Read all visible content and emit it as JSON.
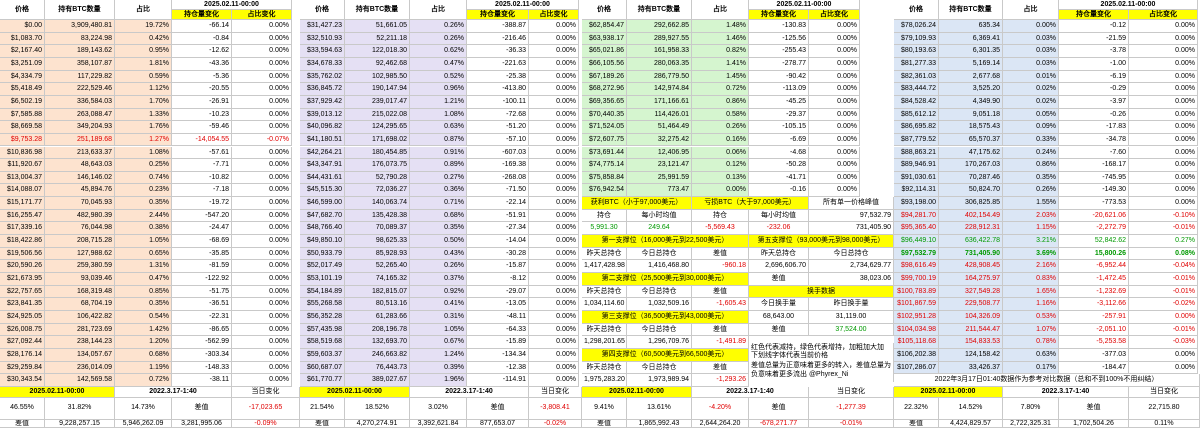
{
  "headers": {
    "price": "价格",
    "btc": "持有BTC数量",
    "pct": "占比",
    "date": "2025.02.11-00:00",
    "hold_change": "持仓量变化",
    "pct_change": "占比变化"
  },
  "blocks": [
    {
      "tone": "peach",
      "rows": [
        [
          "$0.00",
          "3,909,480.81",
          "19.72%",
          "-66.14",
          "0.00%"
        ],
        [
          "$1,083.70",
          "83,224.98",
          "0.42%",
          "-0.84",
          "0.00%"
        ],
        [
          "$2,167.40",
          "189,143.62",
          "0.95%",
          "-12.62",
          "0.00%"
        ],
        [
          "$3,251.09",
          "358,107.87",
          "1.81%",
          "-43.36",
          "0.00%"
        ],
        [
          "$4,334.79",
          "117,229.82",
          "0.59%",
          "-5.36",
          "0.00%"
        ],
        [
          "$5,418.49",
          "222,529.46",
          "1.12%",
          "-20.55",
          "0.00%"
        ],
        [
          "$6,502.19",
          "336,584.03",
          "1.70%",
          "-26.91",
          "0.00%"
        ],
        [
          "$7,585.88",
          "263,088.47",
          "1.33%",
          "-10.23",
          "0.00%"
        ],
        [
          "$8,669.58",
          "349,204.93",
          "1.76%",
          "-59.46",
          "0.00%"
        ],
        [
          "$9,753.28",
          "251,189.68",
          "1.27%",
          "-14,054.55",
          "-0.07%"
        ],
        [
          "$10,836.98",
          "213,633.37",
          "1.08%",
          "-57.61",
          "0.00%"
        ],
        [
          "$11,920.67",
          "48,643.03",
          "0.25%",
          "-7.71",
          "0.00%"
        ],
        [
          "$13,004.37",
          "146,146.02",
          "0.74%",
          "-10.82",
          "0.00%"
        ],
        [
          "$14,088.07",
          "45,894.76",
          "0.23%",
          "-7.18",
          "0.00%"
        ],
        [
          "$15,171.77",
          "70,045.93",
          "0.35%",
          "-19.72",
          "0.00%"
        ],
        [
          "$16,255.47",
          "482,980.39",
          "2.44%",
          "-547.20",
          "0.00%"
        ],
        [
          "$17,339.16",
          "76,044.98",
          "0.38%",
          "-24.47",
          "0.00%"
        ],
        [
          "$18,422.86",
          "208,715.28",
          "1.05%",
          "-68.69",
          "0.00%"
        ],
        [
          "$19,506.56",
          "127,988.62",
          "0.65%",
          "-35.85",
          "0.00%"
        ],
        [
          "$20,590.26",
          "259,380.59",
          "1.31%",
          "-81.59",
          "0.00%"
        ],
        [
          "$21,673.95",
          "93,039.46",
          "0.47%",
          "-122.92",
          "0.00%"
        ],
        [
          "$22,757.65",
          "168,319.48",
          "0.85%",
          "-51.75",
          "0.00%"
        ],
        [
          "$23,841.35",
          "68,704.19",
          "0.35%",
          "-36.51",
          "0.00%"
        ],
        [
          "$24,925.05",
          "106,422.82",
          "0.54%",
          "-22.31",
          "0.00%"
        ],
        [
          "$26,008.75",
          "281,723.69",
          "1.42%",
          "-86.65",
          "0.00%"
        ],
        [
          "$27,092.44",
          "238,144.23",
          "1.20%",
          "-562.99",
          "0.00%"
        ],
        [
          "$28,176.14",
          "134,057.67",
          "0.68%",
          "-303.34",
          "0.00%"
        ],
        [
          "$29,259.84",
          "236,014.09",
          "1.19%",
          "-148.33",
          "0.00%"
        ],
        [
          "$30,343.54",
          "142,569.58",
          "0.72%",
          "-38.11",
          "0.00%"
        ]
      ]
    },
    {
      "tone": "lav",
      "rows": [
        [
          "$31,427.23",
          "51,661.05",
          "0.26%",
          "-388.87",
          "0.00%"
        ],
        [
          "$32,510.93",
          "52,211.18",
          "0.26%",
          "-216.46",
          "0.00%"
        ],
        [
          "$33,594.63",
          "122,018.30",
          "0.62%",
          "-36.33",
          "0.00%"
        ],
        [
          "$34,678.33",
          "92,462.68",
          "0.47%",
          "-221.63",
          "0.00%"
        ],
        [
          "$35,762.02",
          "102,985.50",
          "0.52%",
          "-25.38",
          "0.00%"
        ],
        [
          "$36,845.72",
          "190,147.94",
          "0.96%",
          "-413.80",
          "0.00%"
        ],
        [
          "$37,929.42",
          "239,017.47",
          "1.21%",
          "-100.11",
          "0.00%"
        ],
        [
          "$39,013.12",
          "215,022.08",
          "1.08%",
          "-72.68",
          "0.00%"
        ],
        [
          "$40,096.82",
          "124,295.65",
          "0.63%",
          "-51.20",
          "0.00%"
        ],
        [
          "$41,180.51",
          "171,698.02",
          "0.87%",
          "-57.10",
          "0.00%"
        ],
        [
          "$42,264.21",
          "180,454.85",
          "0.91%",
          "-607.03",
          "0.00%"
        ],
        [
          "$43,347.91",
          "176,073.75",
          "0.89%",
          "-169.38",
          "0.00%"
        ],
        [
          "$44,431.61",
          "52,790.28",
          "0.27%",
          "-268.08",
          "0.00%"
        ],
        [
          "$45,515.30",
          "72,036.27",
          "0.36%",
          "-71.50",
          "0.00%"
        ],
        [
          "$46,599.00",
          "140,063.74",
          "0.71%",
          "-22.14",
          "0.00%"
        ],
        [
          "$47,682.70",
          "135,428.38",
          "0.68%",
          "-51.91",
          "0.00%"
        ],
        [
          "$48,766.40",
          "70,089.37",
          "0.35%",
          "-27.34",
          "0.00%"
        ],
        [
          "$49,850.10",
          "98,625.33",
          "0.50%",
          "-14.04",
          "0.00%"
        ],
        [
          "$50,933.79",
          "85,928.93",
          "0.43%",
          "-30.28",
          "0.00%"
        ],
        [
          "$52,017.49",
          "52,265.40",
          "0.26%",
          "-15.87",
          "0.00%"
        ],
        [
          "$53,101.19",
          "74,165.32",
          "0.37%",
          "-8.12",
          "0.00%"
        ],
        [
          "$54,184.89",
          "182,815.07",
          "0.92%",
          "-29.07",
          "0.00%"
        ],
        [
          "$55,268.58",
          "80,513.16",
          "0.41%",
          "-13.05",
          "0.00%"
        ],
        [
          "$56,352.28",
          "61,283.66",
          "0.31%",
          "-48.11",
          "0.00%"
        ],
        [
          "$57,435.98",
          "208,196.78",
          "1.05%",
          "-64.33",
          "0.00%"
        ],
        [
          "$58,519.68",
          "132,693.70",
          "0.67%",
          "-15.89",
          "0.00%"
        ],
        [
          "$59,603.37",
          "246,663.82",
          "1.24%",
          "-134.34",
          "0.00%"
        ],
        [
          "$60,687.07",
          "76,443.73",
          "0.39%",
          "-12.38",
          "0.00%"
        ],
        [
          "$61,770.77",
          "389,027.67",
          "1.96%",
          "-114.91",
          "0.00%"
        ]
      ]
    },
    {
      "tone": "lgreen",
      "rows": [
        [
          "$62,854.47",
          "292,662.85",
          "1.48%",
          "-130.83",
          "0.00%"
        ],
        [
          "$63,938.17",
          "289,927.55",
          "1.46%",
          "-125.56",
          "0.00%"
        ],
        [
          "$65,021.86",
          "161,958.33",
          "0.82%",
          "-255.43",
          "0.00%"
        ],
        [
          "$66,105.56",
          "280,063.35",
          "1.41%",
          "-278.77",
          "0.00%"
        ],
        [
          "$67,189.26",
          "286,779.50",
          "1.45%",
          "-90.42",
          "0.00%"
        ],
        [
          "$68,272.96",
          "142,974.84",
          "0.72%",
          "-113.09",
          "0.00%"
        ],
        [
          "$69,356.65",
          "171,166.61",
          "0.86%",
          "-45.25",
          "0.00%"
        ],
        [
          "$70,440.35",
          "114,426.01",
          "0.58%",
          "-29.37",
          "0.00%"
        ],
        [
          "$71,524.05",
          "51,464.49",
          "0.26%",
          "-105.15",
          "0.00%"
        ],
        [
          "$72,607.75",
          "32,275.42",
          "0.16%",
          "-6.69",
          "0.00%"
        ],
        [
          "$73,691.44",
          "12,406.95",
          "0.06%",
          "-4.68",
          "0.00%"
        ],
        [
          "$74,775.14",
          "23,121.47",
          "0.12%",
          "-50.28",
          "0.00%"
        ],
        [
          "$75,858.84",
          "25,991.59",
          "0.13%",
          "-41.71",
          "0.00%"
        ],
        [
          "$76,942.54",
          "773.47",
          "0.00%",
          "-0.16",
          "0.00%"
        ]
      ]
    },
    {
      "tone": "lblue",
      "rows": [
        [
          "$78,026.24",
          "635.34",
          "0.00%",
          "-0.12",
          "0.00%"
        ],
        [
          "$79,109.93",
          "6,369.41",
          "0.03%",
          "-21.59",
          "0.00%"
        ],
        [
          "$80,193.63",
          "6,301.35",
          "0.03%",
          "-3.78",
          "0.00%"
        ],
        [
          "$81,277.33",
          "5,169.14",
          "0.03%",
          "-1.00",
          "0.00%"
        ],
        [
          "$82,361.03",
          "2,677.68",
          "0.01%",
          "-6.19",
          "0.00%"
        ],
        [
          "$83,444.72",
          "3,525.20",
          "0.02%",
          "-0.29",
          "0.00%"
        ],
        [
          "$84,528.42",
          "4,349.90",
          "0.02%",
          "-3.97",
          "0.00%"
        ],
        [
          "$85,612.12",
          "9,051.18",
          "0.05%",
          "-0.26",
          "0.00%"
        ],
        [
          "$86,695.82",
          "18,575.43",
          "0.09%",
          "-17.83",
          "0.00%"
        ],
        [
          "$87,779.52",
          "65,570.37",
          "0.33%",
          "-34.78",
          "0.00%"
        ],
        [
          "$88,863.21",
          "47,175.62",
          "0.24%",
          "-7.60",
          "0.00%"
        ],
        [
          "$89,946.91",
          "170,267.03",
          "0.86%",
          "-168.17",
          "0.00%"
        ],
        [
          "$91,030.61",
          "70,287.46",
          "0.35%",
          "-745.95",
          "0.00%"
        ],
        [
          "$92,114.31",
          "50,824.70",
          "0.26%",
          "-149.30",
          "0.00%"
        ],
        [
          "$93,198.00",
          "306,825.85",
          "1.55%",
          "-773.53",
          "0.00%"
        ]
      ]
    }
  ],
  "block4_extra": [
    [
      "$94,281.70",
      "402,154.49",
      "2.03%",
      "-20,621.06",
      "-0.10%",
      "red"
    ],
    [
      "$95,365.40",
      "228,912.31",
      "1.15%",
      "-2,272.79",
      "-0.01%",
      "red"
    ],
    [
      "$96,449.10",
      "636,422.78",
      "3.21%",
      "52,842.62",
      "0.27%",
      "green"
    ],
    [
      "$97,532.79",
      "731,405.90",
      "3.69%",
      "15,800.26",
      "0.08%",
      "green"
    ],
    [
      "$98,616.49",
      "428,908.45",
      "2.16%",
      "-6,952.44",
      "-0.04%",
      "red"
    ],
    [
      "$99,700.19",
      "164,275.97",
      "0.83%",
      "-1,472.45",
      "-0.01%",
      "red"
    ],
    [
      "$100,783.89",
      "327,549.28",
      "1.65%",
      "-1,232.69",
      "-0.01%",
      "red"
    ],
    [
      "$101,867.59",
      "229,508.77",
      "1.16%",
      "-3,112.66",
      "-0.02%",
      "red"
    ],
    [
      "$102,951.28",
      "104,326.09",
      "0.53%",
      "-257.91",
      "0.00%",
      "red"
    ],
    [
      "$104,034.98",
      "211,544.47",
      "1.07%",
      "-2,051.10",
      "-0.01%",
      "red"
    ],
    [
      "$105,118.68",
      "154,833.53",
      "0.78%",
      "-5,253.58",
      "-0.03%",
      "red"
    ],
    [
      "$106,202.38",
      "124,158.42",
      "0.63%",
      "-377.03",
      "0.00%",
      ""
    ],
    [
      "$107,286.07",
      "33,426.37",
      "0.17%",
      "-184.47",
      "0.00%",
      ""
    ]
  ],
  "stats": {
    "profit_label": "获利BTC（小于97,000美元）",
    "loss_label": "亏损BTC（大于97,000美元）",
    "peak_label": "所有单一价格峰值",
    "hold": "持仓",
    "avg_hourly": "每小时均值",
    "profit_hold": "5,991.30",
    "profit_avg": "249.64",
    "loss_hold": "-5,569.43",
    "loss_avg": "-232.06",
    "peak1": "97,532.79",
    "peak2": "731,405.90",
    "s1_label": "第一支撑位（16,000美元到22,500美元）",
    "s5_label": "第五支撑位（93,000美元到98,000美元）",
    "yesterday_hold": "昨天总持仓",
    "today_hold": "今日总持仓",
    "s1_y": "1,417,428.98",
    "s1_t": "1,416,468.80",
    "s1_d": "-960.18",
    "s5_y": "2,696,606.70",
    "s5_t": "2,734,629.77",
    "s5_d": "38,023.06",
    "s2_label": "第二支撑位（25,500美元到30,000美元）",
    "diff": "差值",
    "turnover_label": "换手数据",
    "s2_y": "1,034,114.60",
    "s2_t": "1,032,509.16",
    "s2_d": "-1,605.43",
    "today_turn": "今日换手量",
    "yest_turn": "昨日换手量",
    "today_turn_v": "68,643.00",
    "yest_turn_v": "31,119.00",
    "s3_label": "第三支撑位（36,500美元到43,000美元）",
    "turn_diff": "37,524.00",
    "s3_y": "1,298,201.65",
    "s3_t": "1,296,709.76",
    "s3_d": "-1,491.89",
    "s4_label": "第四支撑位（60,500美元到66,500美元）",
    "s4_y": "1,975,283.20",
    "s4_t": "1,973,989.94",
    "s4_d": "-1,293.26",
    "notes": [
      "红色代表减持，绿色代表增持，加粗加大加",
      "下划线字体代表当前价格",
      "差值总量为正意味着更多的转入，差值总量为",
      "负意味着更多流出 @Phyrex_Ni"
    ]
  },
  "summary": {
    "date_a": "2025.02.11-00:00",
    "date_b": "2022.3.17-1:40",
    "today_change": "当日变化",
    "diff_label": "差值",
    "footnote": "2022年3月17日01:40数据作为参考对比数据（总和不到100%不用纠结）",
    "blocks": [
      {
        "top": [
          "46.55%",
          "31.82%",
          "14.73%",
          "-17,023.65"
        ],
        "bot": [
          "9,228,257.15",
          "5,946,262.09",
          "3,281,995.06",
          "-0.09%"
        ]
      },
      {
        "top": [
          "21.54%",
          "18.52%",
          "3.02%",
          "-3,808.41"
        ],
        "bot": [
          "4,270,274.91",
          "3,392,621.84",
          "877,653.07",
          "-0.02%"
        ]
      },
      {
        "top": [
          "9.41%",
          "13.61%",
          "-4.20%",
          "-1,277.39"
        ],
        "bot": [
          "1,865,992.43",
          "2,644,264.20",
          "-678,271.77",
          "-0.01%"
        ]
      },
      {
        "top": [
          "22.32%",
          "14.52%",
          "7.80%",
          "22,715.80"
        ],
        "bot": [
          "4,424,829.57",
          "2,722,325.31",
          "1,702,504.26",
          "0.11%"
        ]
      }
    ]
  }
}
